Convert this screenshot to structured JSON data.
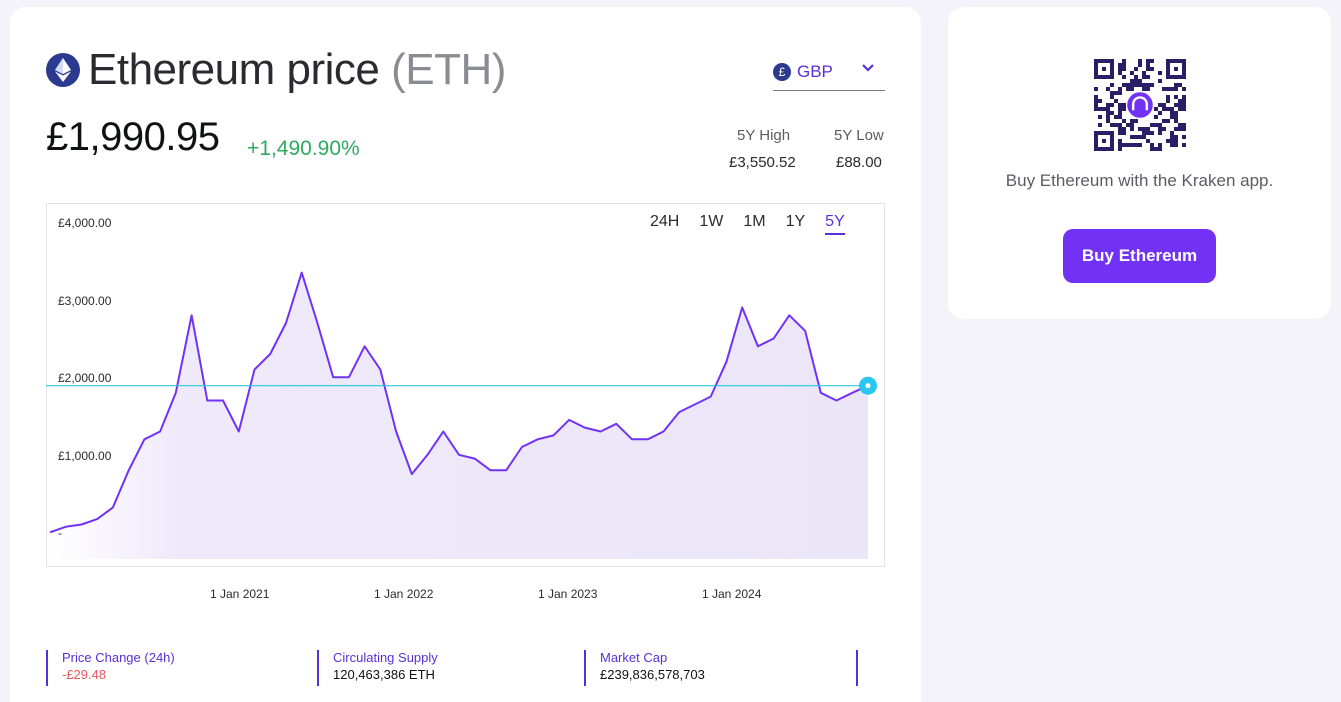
{
  "header": {
    "title_main": "Ethereum price",
    "title_symbol": "(ETH)",
    "icon": "ethereum-icon"
  },
  "currency": {
    "symbol": "£",
    "label": "GBP",
    "icon": "chevron-down-icon"
  },
  "price": {
    "current": "£1,990.95",
    "change": "+1,490.90%"
  },
  "stats": {
    "high_label": "5Y High",
    "high_value": "£3,550.52",
    "low_label": "5Y Low",
    "low_value": "£88.00"
  },
  "range_tabs": [
    {
      "label": "24H",
      "active": false
    },
    {
      "label": "1W",
      "active": false
    },
    {
      "label": "1M",
      "active": false
    },
    {
      "label": "1Y",
      "active": false
    },
    {
      "label": "5Y",
      "active": true
    }
  ],
  "colors": {
    "accent": "#5a2fd6",
    "line": "#7132f5",
    "current_line": "#28c6f0",
    "positive": "#2eaa5e",
    "negative": "#e8565f"
  },
  "chart_data": {
    "type": "area",
    "x": [
      "2019-11",
      "2020-03",
      "2020-06",
      "2020-09",
      "2020-12",
      "2021-01",
      "2021-02",
      "2021-03",
      "2021-04",
      "2021-05",
      "2021-05b",
      "2021-06",
      "2021-07",
      "2021-08",
      "2021-09",
      "2021-10",
      "2021-11",
      "2021-12",
      "2022-01",
      "2022-02",
      "2022-03",
      "2022-04",
      "2022-05",
      "2022-06",
      "2022-07",
      "2022-08",
      "2022-09",
      "2022-10",
      "2022-11",
      "2022-12",
      "2023-01",
      "2023-02",
      "2023-03",
      "2023-04",
      "2023-05",
      "2023-06",
      "2023-07",
      "2023-08",
      "2023-09",
      "2023-10",
      "2023-11",
      "2023-12",
      "2024-01",
      "2024-02",
      "2024-03",
      "2024-04",
      "2024-05",
      "2024-06",
      "2024-07",
      "2024-08",
      "2024-09",
      "2024-10",
      "2024-11"
    ],
    "values": [
      100,
      170,
      200,
      270,
      420,
      900,
      1300,
      1400,
      1900,
      2900,
      1800,
      1800,
      1400,
      2200,
      2400,
      2800,
      3450,
      2800,
      2100,
      2100,
      2500,
      2200,
      1400,
      850,
      1100,
      1400,
      1100,
      1050,
      900,
      900,
      1200,
      1300,
      1350,
      1550,
      1450,
      1400,
      1500,
      1300,
      1300,
      1400,
      1650,
      1750,
      1850,
      2300,
      3000,
      2500,
      2600,
      2900,
      2700,
      1900,
      1800,
      1900,
      1990.95
    ],
    "yticks": [
      "£4,000.00",
      "£3,000.00",
      "£2,000.00",
      "£1,000.00",
      "-"
    ],
    "ylim": [
      0,
      4000
    ],
    "xticks": [
      "1 Jan 2021",
      "1 Jan 2022",
      "1 Jan 2023",
      "1 Jan 2024"
    ],
    "current_value": 1990.95,
    "grid": false
  },
  "metrics": [
    {
      "label": "Price Change (24h)",
      "value": "-£29.48",
      "negative": true
    },
    {
      "label": "Circulating Supply",
      "value": "120,463,386 ETH",
      "negative": false
    },
    {
      "label": "Market Cap",
      "value": "£239,836,578,703",
      "negative": false
    }
  ],
  "side": {
    "text": "Buy Ethereum with the Kraken app.",
    "button": "Buy Ethereum",
    "qr_icon": "qr-code-icon"
  }
}
